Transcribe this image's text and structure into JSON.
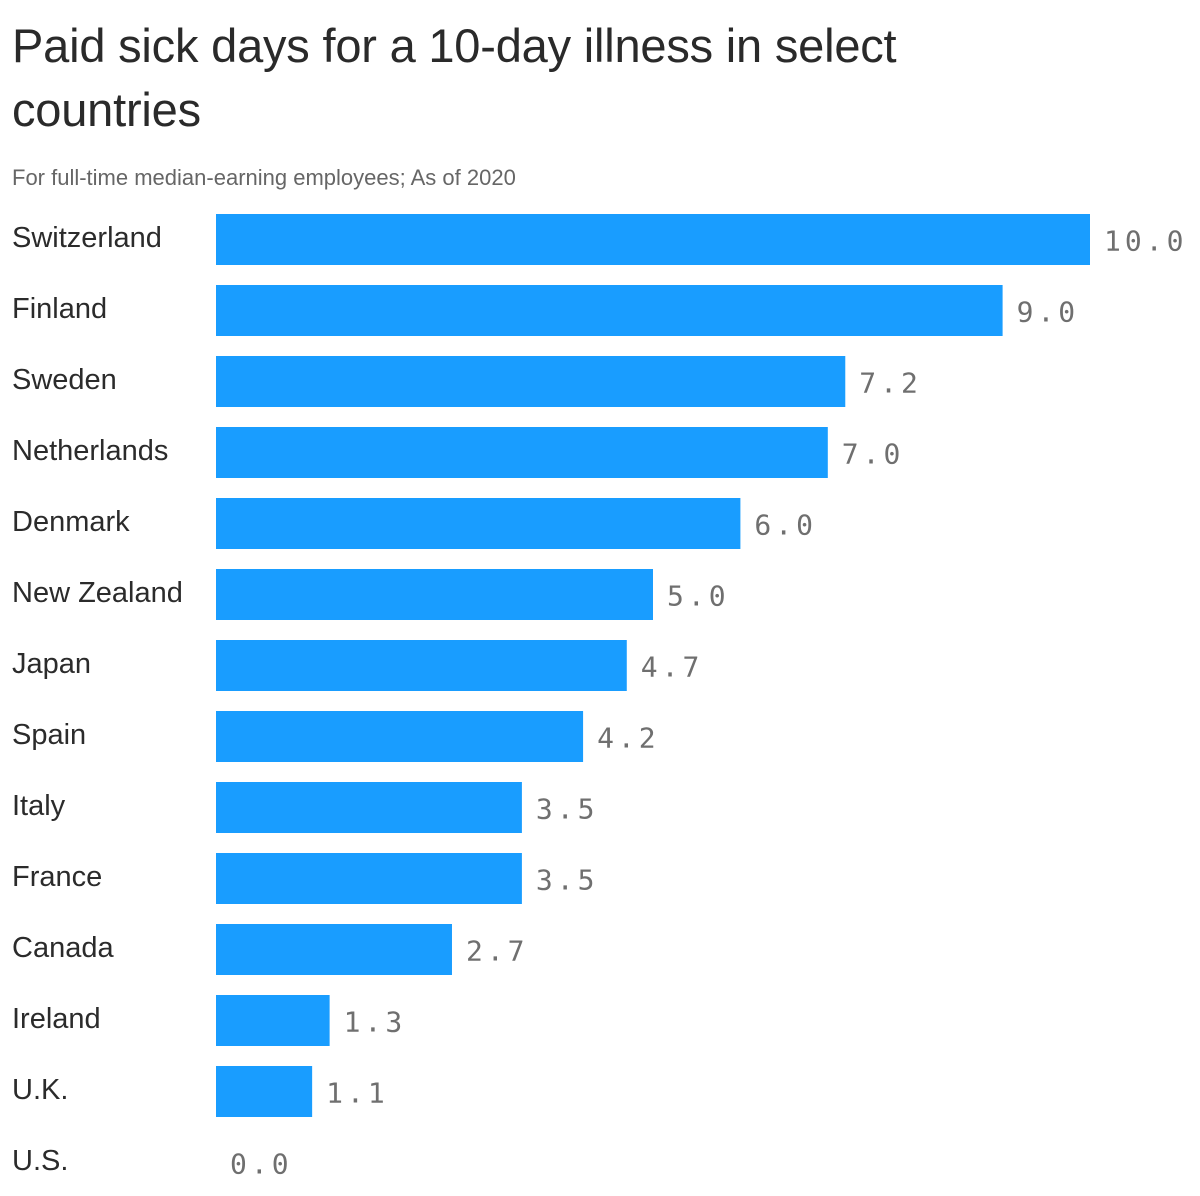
{
  "header": {
    "title": "Paid sick days for a 10-day illness in select countries",
    "subtitle": "For full-time median-earning employees; As of 2020"
  },
  "colors": {
    "bar": "#199dff",
    "value_text": "#6f6f6f",
    "label_text": "#2b2b2b"
  },
  "chart_data": {
    "type": "bar",
    "orientation": "horizontal",
    "title": "Paid sick days for a 10-day illness in select countries",
    "subtitle": "For full-time median-earning employees; As of 2020",
    "categories": [
      "Switzerland",
      "Finland",
      "Sweden",
      "Netherlands",
      "Denmark",
      "New Zealand",
      "Japan",
      "Spain",
      "Italy",
      "France",
      "Canada",
      "Ireland",
      "U.K.",
      "U.S."
    ],
    "values": [
      10.0,
      9.0,
      7.2,
      7.0,
      6.0,
      5.0,
      4.7,
      4.2,
      3.5,
      3.5,
      2.7,
      1.3,
      1.1,
      0.0
    ],
    "value_labels": [
      "10.0",
      "9.0",
      "7.2",
      "7.0",
      "6.0",
      "5.0",
      "4.7",
      "4.2",
      "3.5",
      "3.5",
      "2.7",
      "1.3",
      "1.1",
      "0.0"
    ],
    "xlim": [
      0,
      10
    ],
    "grid": false,
    "legend": "none"
  }
}
